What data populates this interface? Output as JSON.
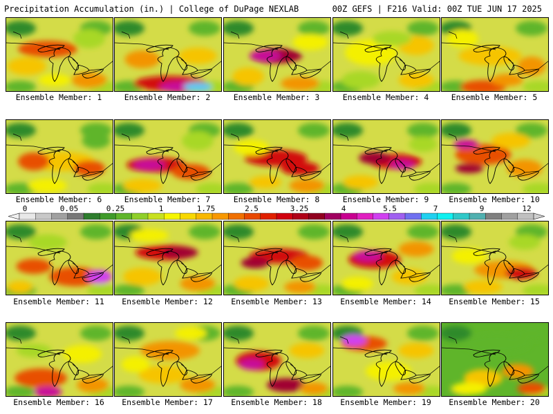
{
  "header": {
    "left": "Precipitation Accumulation (in.) | College of DuPage NEXLAB",
    "right": "00Z GEFS | F216 Valid: 00Z TUE JUN 17 2025"
  },
  "colorbar": {
    "labels": [
      "0",
      "0.05",
      "0.25",
      "1",
      "1.75",
      "2.5",
      "3.25",
      "4",
      "5.5",
      "7",
      "9",
      "12"
    ],
    "colors": [
      "#e8e8e8",
      "#c8c8c8",
      "#a0a0a0",
      "#787878",
      "#2e7d2e",
      "#3f9a2a",
      "#5fb52a",
      "#8fcf2a",
      "#c8e020",
      "#f6f600",
      "#f8d800",
      "#f8b800",
      "#f89800",
      "#f07000",
      "#e84800",
      "#e02000",
      "#d00010",
      "#b00018",
      "#900020",
      "#a00060",
      "#c80090",
      "#e020c0",
      "#d040f0",
      "#a060f0",
      "#7070f0",
      "#20d0f0",
      "#10f0f0",
      "#30c8c8",
      "#50b0b0",
      "#808080",
      "#a0a0a0",
      "#c0c0c0"
    ]
  },
  "panels": [
    {
      "label": "Ensemble Member: 1"
    },
    {
      "label": "Ensemble Member: 2"
    },
    {
      "label": "Ensemble Member: 3"
    },
    {
      "label": "Ensemble Member: 4"
    },
    {
      "label": "Ensemble Member: 5"
    },
    {
      "label": "Ensemble Member: 6"
    },
    {
      "label": "Ensemble Member: 7"
    },
    {
      "label": "Ensemble Member: 8"
    },
    {
      "label": "Ensemble Member: 9"
    },
    {
      "label": "Ensemble Member: 10"
    },
    {
      "label": "Ensemble Member: 11"
    },
    {
      "label": "Ensemble Member: 12"
    },
    {
      "label": "Ensemble Member: 13"
    },
    {
      "label": "Ensemble Member: 14"
    },
    {
      "label": "Ensemble Member: 15"
    },
    {
      "label": "Ensemble Member: 16"
    },
    {
      "label": "Ensemble Member: 17"
    },
    {
      "label": "Ensemble Member: 18"
    },
    {
      "label": "Ensemble Member: 19"
    },
    {
      "label": "Ensemble Member: 20"
    }
  ]
}
